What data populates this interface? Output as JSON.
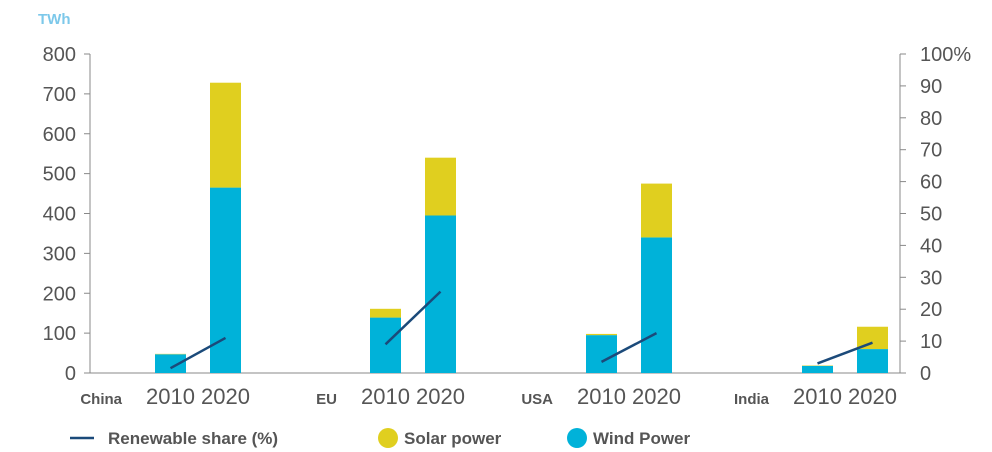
{
  "chart_data": {
    "type": "bar",
    "unit_label": "TWh",
    "groups": [
      {
        "country": "China",
        "years": [
          "2010",
          "2020"
        ]
      },
      {
        "country": "EU",
        "years": [
          "2010",
          "2020"
        ]
      },
      {
        "country": "USA",
        "years": [
          "2010",
          "2020"
        ]
      },
      {
        "country": "India",
        "years": [
          "2010",
          "2020"
        ]
      }
    ],
    "series": [
      {
        "name": "Wind Power",
        "color": "#00b2d9",
        "values": [
          47,
          465,
          139,
          395,
          95,
          340,
          18,
          60
        ]
      },
      {
        "name": "Solar power",
        "color": "#e0cf1f",
        "values": [
          1,
          263,
          22,
          145,
          3,
          135,
          1,
          56
        ]
      }
    ],
    "line_series": {
      "name": "Renewable share (%)",
      "color": "#1b4a7a",
      "values": [
        [
          1.5,
          11
        ],
        [
          9,
          25.5
        ],
        [
          3.5,
          12.5
        ],
        [
          3,
          9.5
        ]
      ]
    },
    "y_left": {
      "min": 0,
      "max": 800,
      "ticks": [
        "0",
        "100",
        "200",
        "300",
        "400",
        "500",
        "600",
        "700",
        "800"
      ]
    },
    "y_right": {
      "min": 0,
      "max": 100,
      "ticks": [
        "0",
        "10",
        "20",
        "30",
        "40",
        "50",
        "60",
        "70",
        "80",
        "90",
        "100%"
      ]
    },
    "legend": [
      "Renewable share (%)",
      "Solar power",
      "Wind Power"
    ],
    "legend_position": "bottom",
    "grid": false
  }
}
